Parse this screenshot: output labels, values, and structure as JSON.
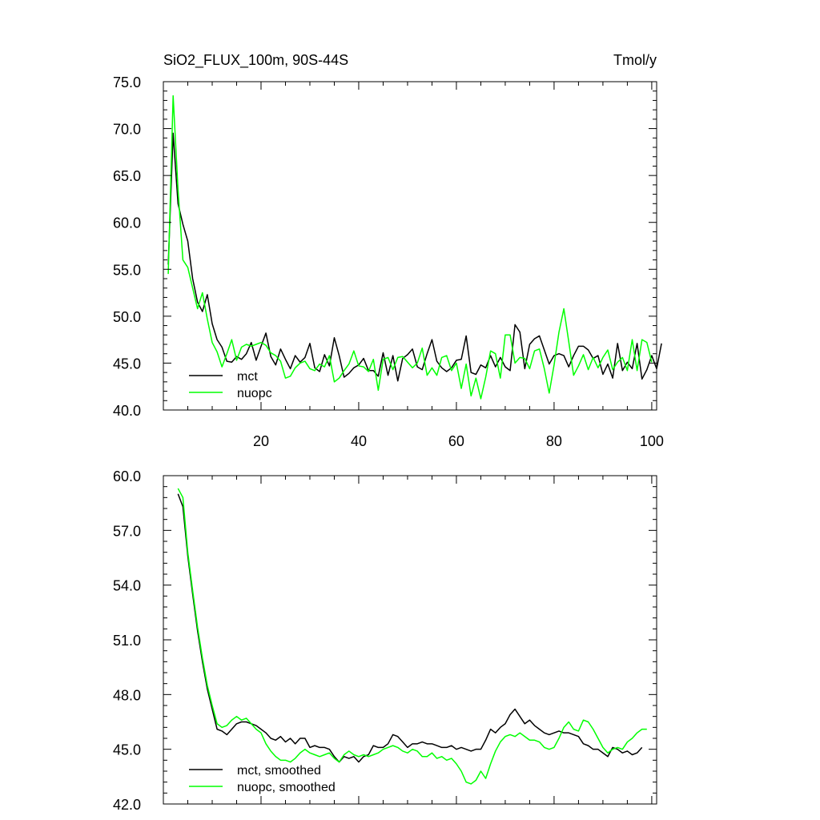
{
  "chart_data": [
    {
      "type": "line",
      "title": "SiO2_FLUX_100m, 90S-44S",
      "units": "Tmol/y",
      "xlim": [
        0,
        101
      ],
      "ylim": [
        40,
        75
      ],
      "xticks": [
        20,
        40,
        60,
        80,
        100
      ],
      "xtick_labels": [
        "20",
        "40",
        "60",
        "80",
        "100"
      ],
      "yticks": [
        40,
        45,
        50,
        55,
        60,
        65,
        70,
        75
      ],
      "ytick_labels": [
        "40.0",
        "45.0",
        "50.0",
        "55.0",
        "60.0",
        "65.0",
        "70.0",
        "75.0"
      ],
      "legend_position": "bottom-left",
      "x_start": 1,
      "series": [
        {
          "name": "mct",
          "color": "#000000",
          "values": [
            55.5,
            69.5,
            62,
            59.8,
            58,
            54,
            51.5,
            50.5,
            52.3,
            49.2,
            47.5,
            46.7,
            45.2,
            45.1,
            45.7,
            45.4,
            46,
            47.2,
            45.3,
            46.8,
            48.2,
            45.7,
            44.8,
            46.5,
            45.4,
            44.4,
            45.8,
            45.1,
            45.6,
            47.1,
            44.5,
            44.1,
            45.9,
            44.7,
            47.7,
            45.8,
            43.5,
            43.9,
            44.5,
            44.8,
            45.5,
            44.2,
            44.2,
            43.6,
            46.1,
            43.7,
            45.8,
            43.1,
            45.5,
            45.9,
            46.5,
            44.6,
            44.3,
            46,
            47.5,
            45.2,
            44.5,
            44.1,
            44.5,
            45.3,
            45.4,
            47.9,
            44,
            43.8,
            44.8,
            44.5,
            45.8,
            44.6,
            45.6,
            44.6,
            44.2,
            49.1,
            48.3,
            44.4,
            47,
            47.6,
            47.9,
            46.4,
            44.9,
            45.8,
            46,
            45.8,
            44.6,
            45.8,
            46.8,
            46.8,
            46.4,
            45.5,
            45.8,
            43.8,
            44.9,
            43.4,
            47.1,
            44.2,
            45.1,
            44.4,
            47.1,
            43.3,
            44.3,
            45.8,
            44.4,
            47.1
          ]
        },
        {
          "name": "nuopc",
          "color": "#00ff00",
          "values": [
            54.5,
            73.5,
            63.5,
            56,
            55.2,
            53,
            50.8,
            52.5,
            49.7,
            47.2,
            46.2,
            44.6,
            46,
            47.5,
            45.3,
            46.7,
            47,
            46.8,
            47,
            47.2,
            46.9,
            46.1,
            45.8,
            45.2,
            43.4,
            43.6,
            44.5,
            45,
            45.2,
            44.4,
            44.2,
            44.9,
            44.6,
            45.8,
            43,
            43.4,
            44.2,
            44.9,
            46.3,
            44.7,
            44.6,
            44.1,
            45.4,
            42.1,
            45.4,
            45.6,
            44.3,
            45.6,
            45.7,
            45.1,
            44.5,
            45,
            46.6,
            43.7,
            44.5,
            43.7,
            45.6,
            45.8,
            44.2,
            45,
            42.3,
            44.9,
            41.5,
            43.4,
            41.2,
            43.5,
            46.3,
            46,
            43.4,
            48,
            48,
            45,
            45.6,
            45.5,
            44.4,
            46.3,
            46.5,
            44.4,
            41.8,
            44.8,
            48.3,
            50.8,
            47.3,
            43.7,
            44.7,
            45.9,
            44.3,
            45.6,
            44.5,
            45.6,
            46.4,
            44.3,
            45.1,
            45.6,
            44.2,
            47.5,
            44.2,
            47.5,
            47.2,
            45.1
          ]
        }
      ]
    },
    {
      "type": "line",
      "title": "",
      "xlim": [
        0,
        101
      ],
      "ylim": [
        42,
        60
      ],
      "xticks": [
        20,
        40,
        60,
        80,
        100
      ],
      "yticks": [
        42,
        45,
        48,
        51,
        54,
        57,
        60
      ],
      "ytick_labels": [
        "42.0",
        "45.0",
        "48.0",
        "51.0",
        "54.0",
        "57.0",
        "60.0"
      ],
      "legend_position": "bottom-left",
      "x_start": 3,
      "series": [
        {
          "name": "mct, smoothed",
          "color": "#000000",
          "values": [
            59,
            58.3,
            55.6,
            53.5,
            51.5,
            49.8,
            48.3,
            47.2,
            46.1,
            46,
            45.8,
            46.1,
            46.4,
            46.5,
            46.5,
            46.4,
            46.3,
            46.1,
            45.9,
            45.6,
            45.5,
            45.7,
            45.4,
            45.6,
            45.3,
            45.6,
            45.6,
            45.1,
            45.2,
            45.1,
            45.1,
            45,
            44.6,
            44.3,
            44.6,
            44.5,
            44.6,
            44.3,
            44.6,
            44.7,
            45.2,
            45.1,
            45.1,
            45.3,
            45.8,
            45.7,
            45.4,
            45.1,
            45.3,
            45.3,
            45.4,
            45.3,
            45.3,
            45.2,
            45.1,
            45.1,
            45.2,
            45,
            45.1,
            45,
            44.9,
            45,
            45,
            45.5,
            46.1,
            45.9,
            46.2,
            46.4,
            46.9,
            47.2,
            46.8,
            46.4,
            46.6,
            46.3,
            46.1,
            45.9,
            45.8,
            45.9,
            46,
            45.9,
            45.9,
            45.8,
            45.7,
            45.3,
            45.2,
            45,
            45,
            44.8,
            44.6,
            45.1,
            45,
            44.8,
            44.9,
            44.7,
            44.8,
            45.1
          ]
        },
        {
          "name": "nuopc, smoothed",
          "color": "#00ff00",
          "values": [
            59.3,
            58.8,
            55.8,
            53.7,
            51.7,
            50,
            48.5,
            47.4,
            46.4,
            46.2,
            46.3,
            46.6,
            46.8,
            46.6,
            46.7,
            46.4,
            46.1,
            45.9,
            45.3,
            44.9,
            44.6,
            44.4,
            44.4,
            44.3,
            44.5,
            44.8,
            45,
            44.8,
            44.7,
            44.6,
            44.7,
            44.8,
            44.5,
            44.3,
            44.7,
            44.9,
            44.7,
            44.6,
            44.7,
            44.6,
            44.7,
            44.8,
            45,
            45.1,
            45.2,
            45.1,
            44.9,
            44.8,
            45,
            44.9,
            44.6,
            44.6,
            44.8,
            44.5,
            44.6,
            44.4,
            44.5,
            44.2,
            43.8,
            43.2,
            43.1,
            43.3,
            43.8,
            43.4,
            44.2,
            44.9,
            45.4,
            45.7,
            45.8,
            45.7,
            45.9,
            45.7,
            45.5,
            45.5,
            45.4,
            45.1,
            45,
            45.1,
            45.6,
            46.2,
            46.5,
            46.1,
            46,
            46.6,
            46.5,
            46.1,
            45.6,
            45.1,
            44.8,
            45,
            45.1,
            45,
            45.4,
            45.6,
            45.9,
            46.1,
            46.1
          ]
        }
      ]
    }
  ]
}
